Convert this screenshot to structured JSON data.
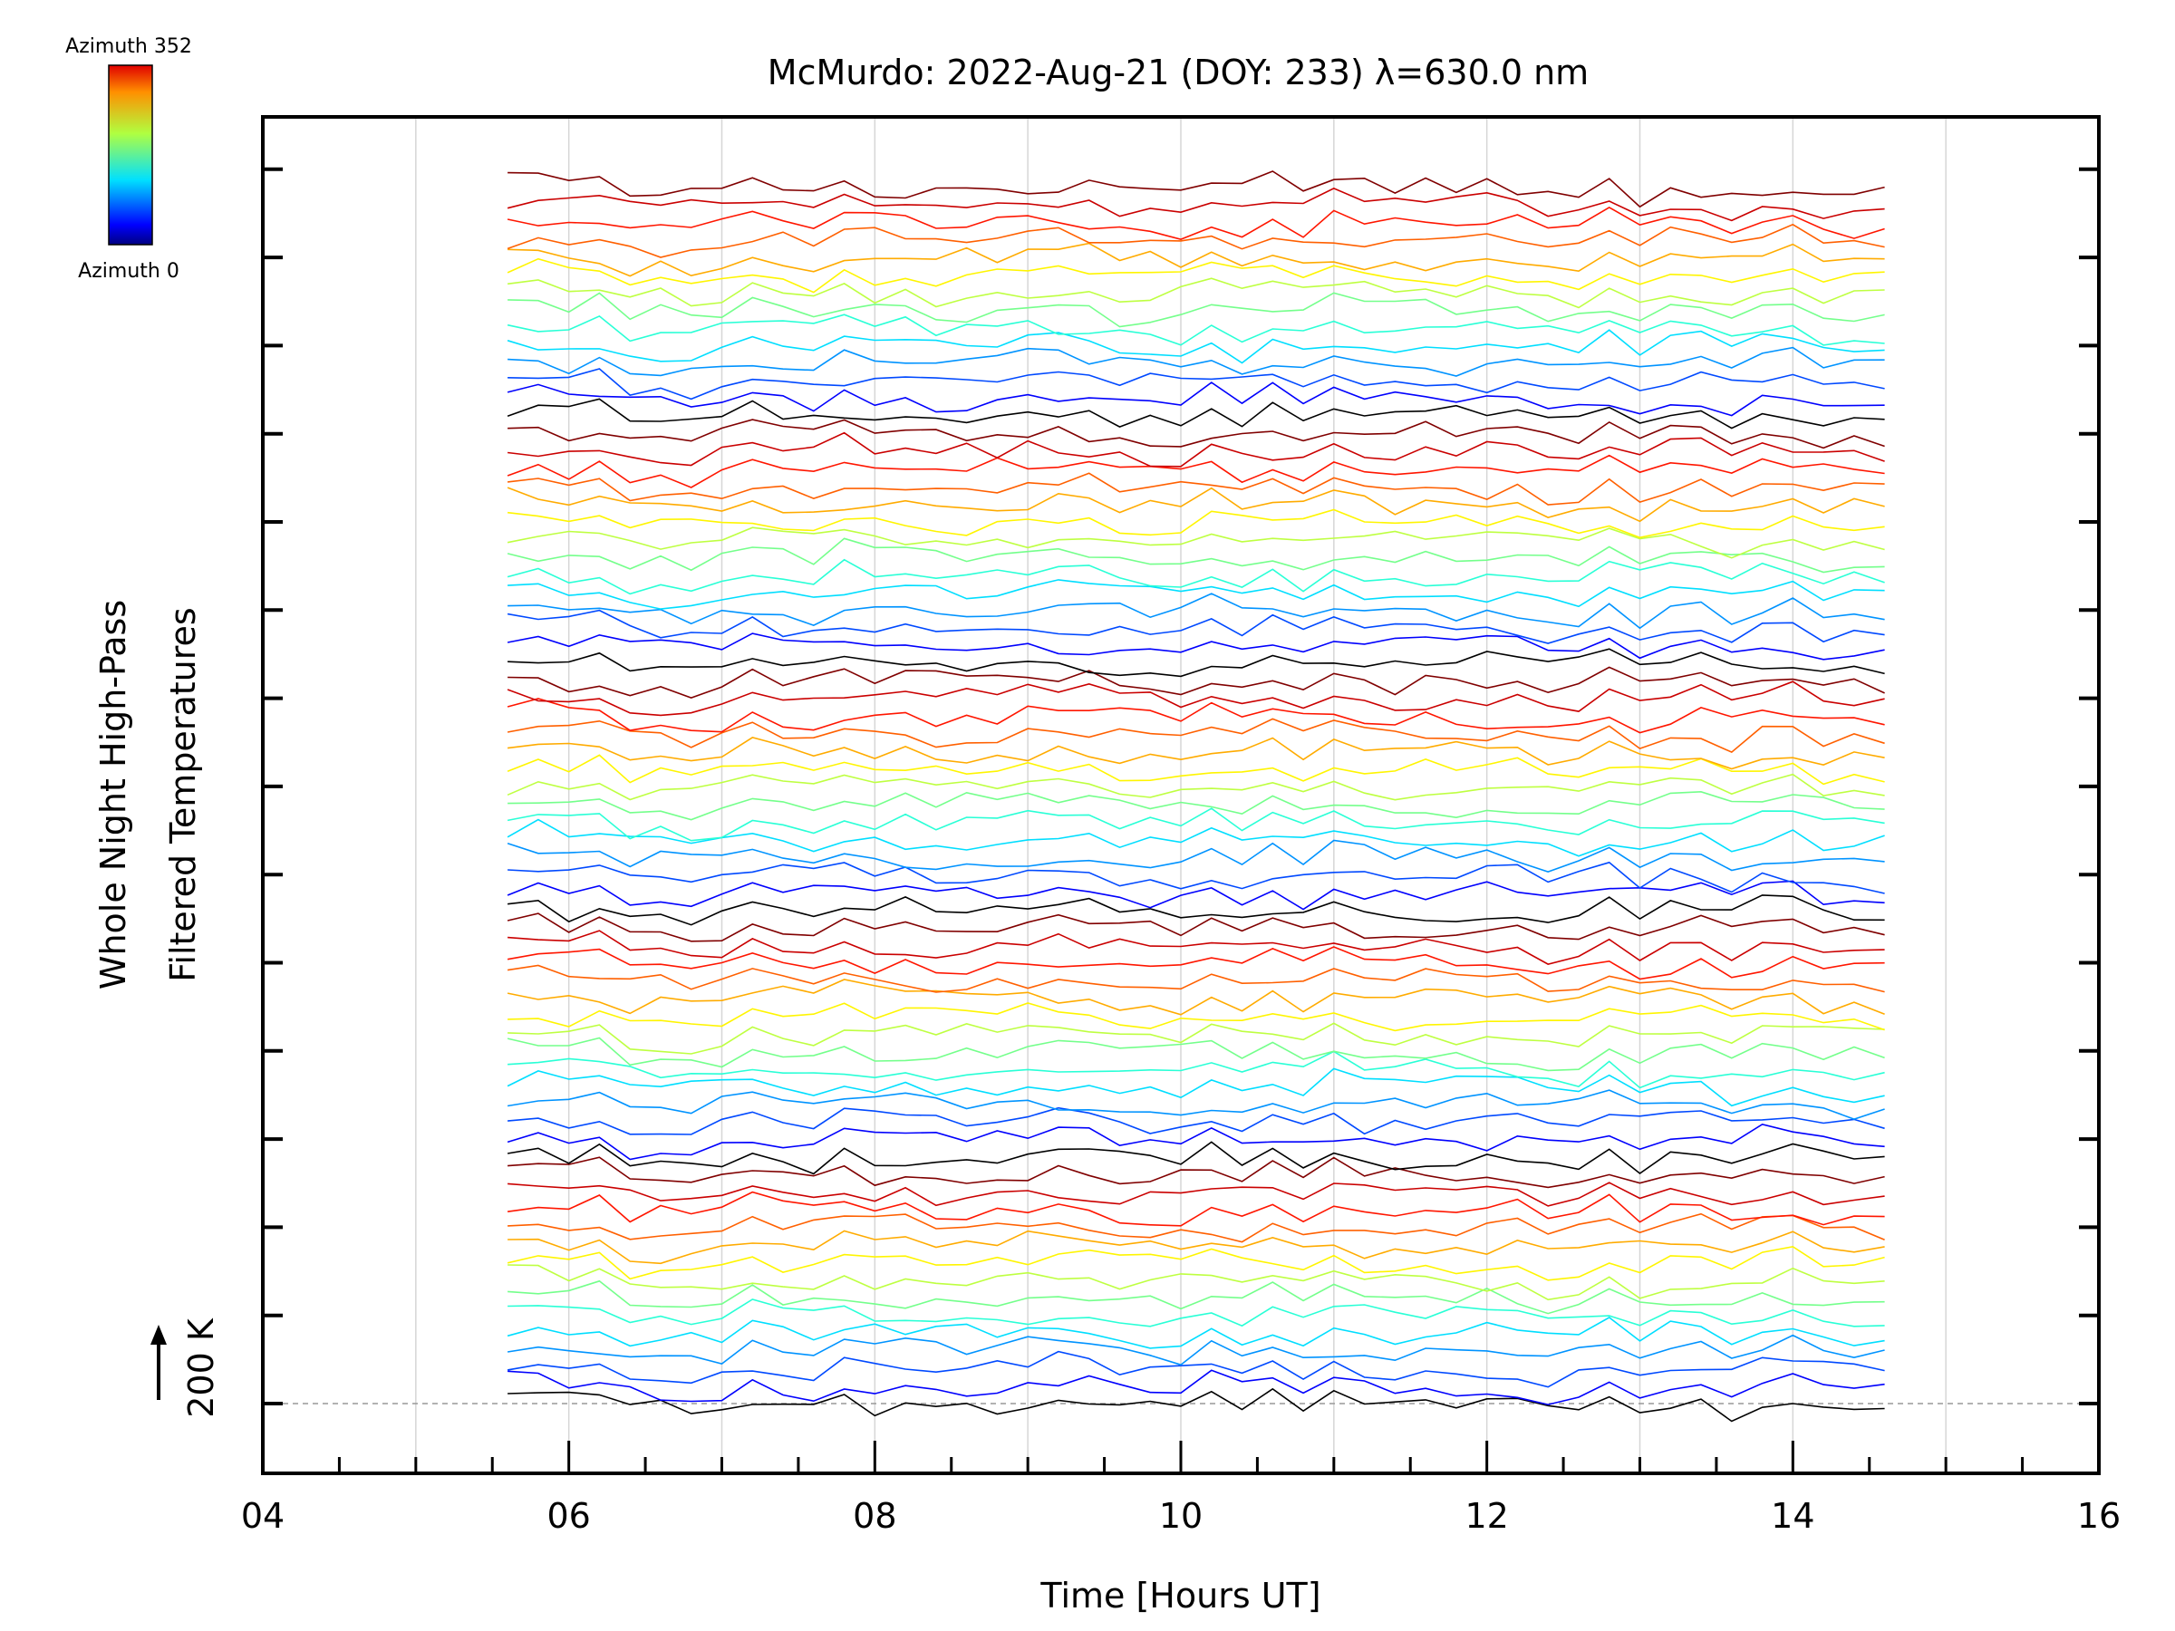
{
  "chart_data": {
    "type": "line",
    "title": "McMurdo: 2022-Aug-21 (DOY: 233) λ=630.0 nm",
    "xlabel": "Time [Hours UT]",
    "ylabel_line1": "Whole Night High-Pass",
    "ylabel_line2": "Filtered Temperatures",
    "xlim": [
      4,
      16
    ],
    "x_ticks": [
      "04",
      "06",
      "08",
      "10",
      "12",
      "14",
      "16"
    ],
    "x_start_hours": 5.6,
    "x_end_hours": 14.75,
    "x_step_hours": 0.2,
    "baseline_label": "200 K",
    "baseline_offset": 0,
    "offset_step": 0.2,
    "n_series": 70,
    "colorbar": {
      "top_label": "Azimuth 352",
      "bottom_label": "Azimuth 0",
      "min": 0,
      "max": 352
    },
    "grid": "vertical",
    "colors": {
      "baseline": "#999999",
      "axis": "#000000"
    }
  }
}
